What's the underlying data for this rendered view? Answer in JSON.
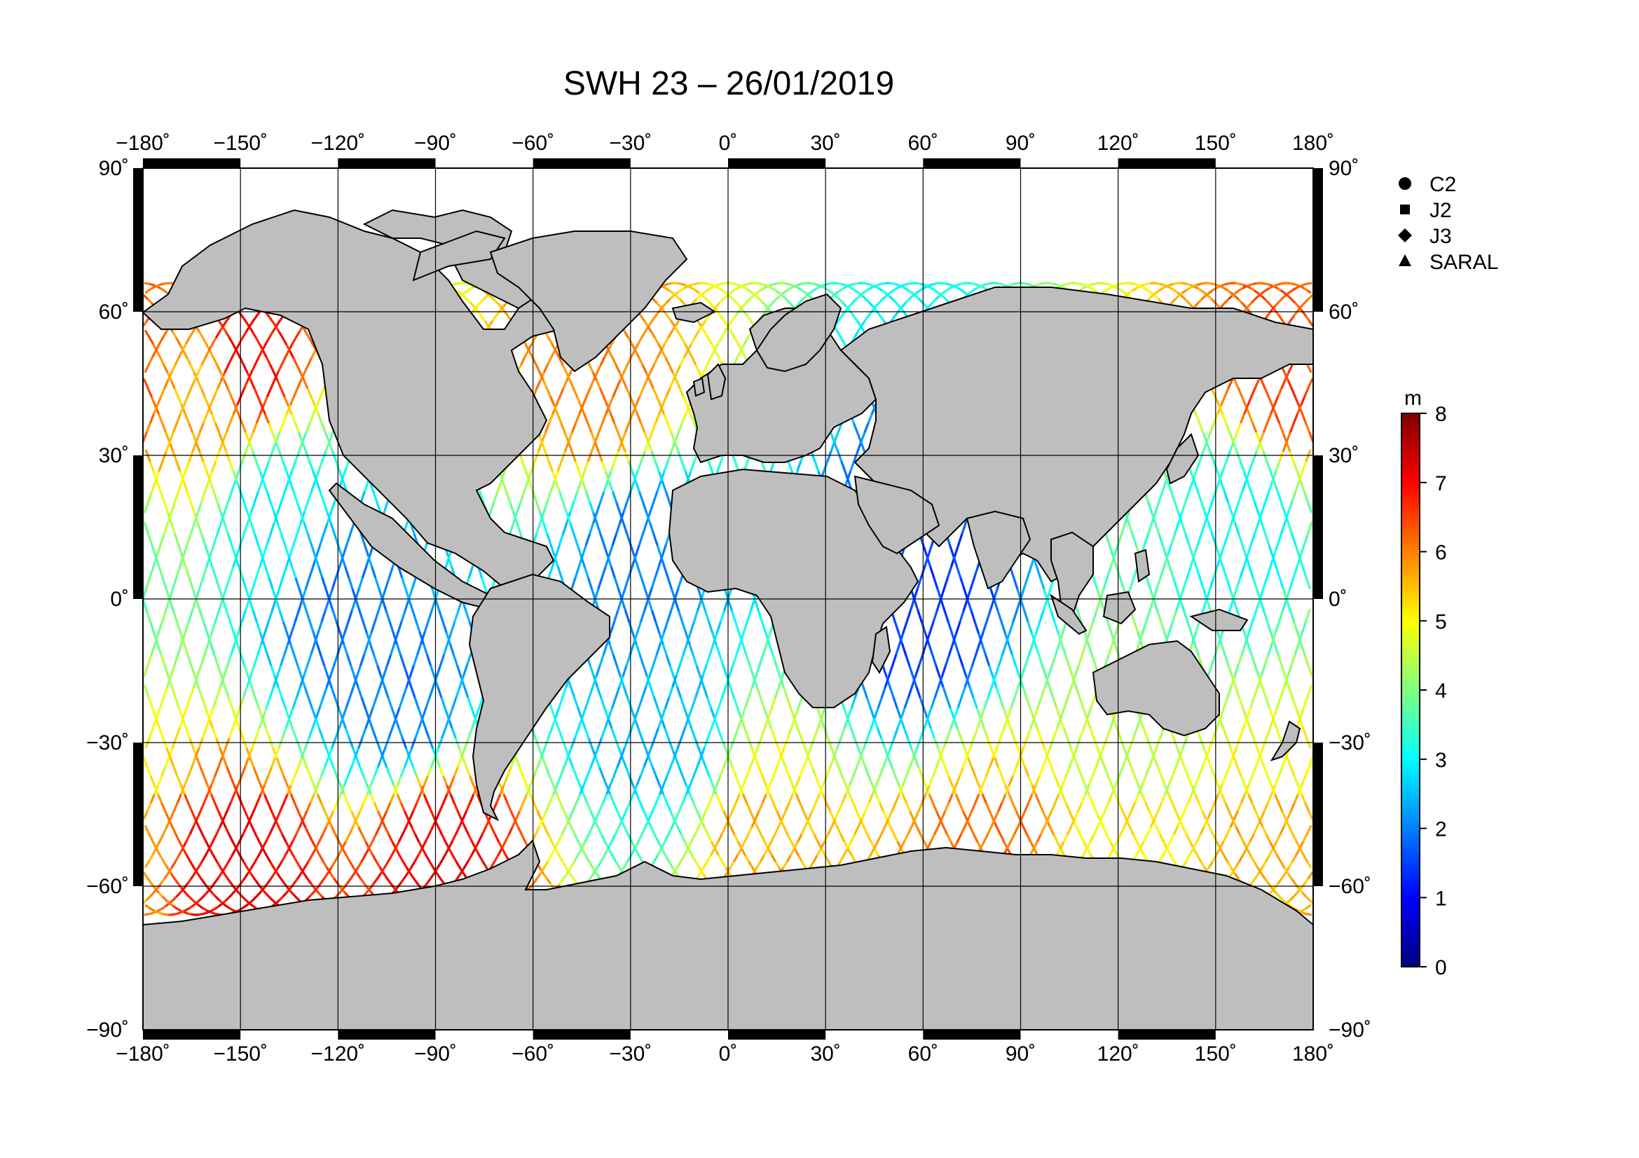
{
  "title": "SWH 23 – 26/01/2019",
  "map": {
    "projection": "equirectangular",
    "lon_range": [
      -180,
      180
    ],
    "lat_range": [
      -90,
      90
    ],
    "grid": true,
    "grid_step_deg": 30,
    "land_color": "#bebebe",
    "ocean_color": "#ffffff",
    "lon_ticks": [
      "−180˚",
      "−150˚",
      "−120˚",
      "−90˚",
      "−60˚",
      "−30˚",
      "0˚",
      "30˚",
      "60˚",
      "90˚",
      "120˚",
      "150˚",
      "180˚"
    ],
    "lat_ticks": [
      "90˚",
      "60˚",
      "30˚",
      "0˚",
      "−30˚",
      "−60˚",
      "−90˚"
    ]
  },
  "legend": {
    "placement": "right",
    "items": [
      {
        "label": "C2",
        "symbol": "circle-icon"
      },
      {
        "label": "J2",
        "symbol": "square-icon"
      },
      {
        "label": "J3",
        "symbol": "diamond-icon"
      },
      {
        "label": "SARAL",
        "symbol": "triangle-icon"
      }
    ]
  },
  "colorbar": {
    "unit": "m",
    "min": 0,
    "max": 8,
    "ticks": [
      "0",
      "1",
      "2",
      "3",
      "4",
      "5",
      "6",
      "7",
      "8"
    ],
    "colormap": "jet"
  },
  "chart_data": {
    "type": "scatter",
    "title": "SWH 23 – 26/01/2019",
    "xlabel": "",
    "ylabel": "",
    "xlim": [
      -180,
      180
    ],
    "ylim": [
      -90,
      90
    ],
    "value_unit": "m",
    "value_range": [
      0,
      8
    ],
    "series": [
      {
        "name": "C2"
      },
      {
        "name": "J2"
      },
      {
        "name": "J3"
      },
      {
        "name": "SARAL"
      }
    ],
    "regional_swh_m": [
      {
        "lon": -160,
        "lat": 45,
        "value": 5.5
      },
      {
        "lon": -150,
        "lat": 50,
        "value": 7.0
      },
      {
        "lon": -140,
        "lat": 20,
        "value": 3.0
      },
      {
        "lon": -120,
        "lat": 0,
        "value": 2.0
      },
      {
        "lon": -100,
        "lat": -20,
        "value": 2.0
      },
      {
        "lon": -90,
        "lat": -50,
        "value": 6.5
      },
      {
        "lon": -150,
        "lat": -55,
        "value": 6.5
      },
      {
        "lon": -40,
        "lat": 45,
        "value": 6.0
      },
      {
        "lon": -30,
        "lat": 10,
        "value": 2.0
      },
      {
        "lon": -20,
        "lat": -30,
        "value": 2.5
      },
      {
        "lon": 10,
        "lat": -45,
        "value": 5.0
      },
      {
        "lon": 60,
        "lat": 0,
        "value": 1.5
      },
      {
        "lon": 80,
        "lat": -50,
        "value": 5.5
      },
      {
        "lon": 120,
        "lat": -50,
        "value": 4.5
      },
      {
        "lon": 170,
        "lat": 45,
        "value": 6.5
      },
      {
        "lon": 160,
        "lat": 20,
        "value": 3.0
      },
      {
        "lon": 170,
        "lat": -50,
        "value": 5.0
      }
    ]
  }
}
